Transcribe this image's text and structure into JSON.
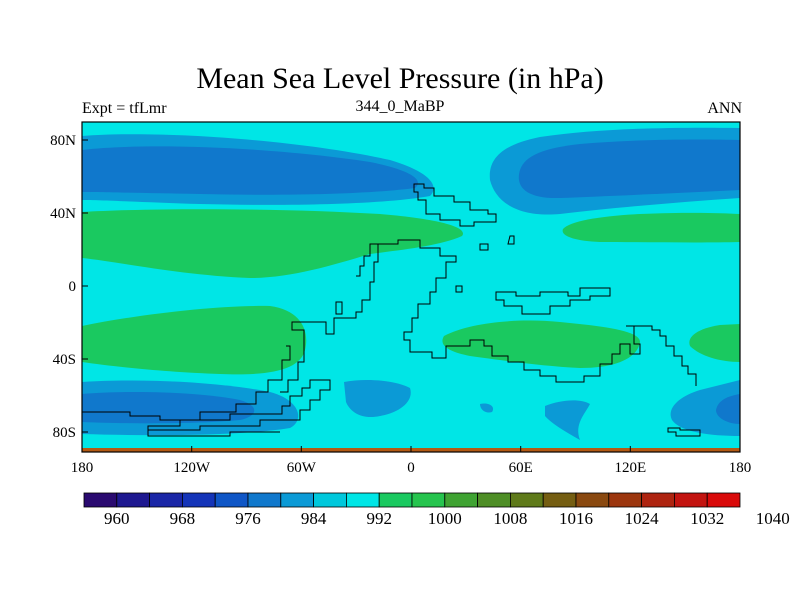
{
  "title": "Mean Sea Level Pressure (in hPa)",
  "subtitle_left": "Expt = tfLmr",
  "subtitle_center": "344_0_MaBP",
  "subtitle_right": "ANN",
  "colors": {
    "background": "#00E6E6",
    "land_outline": "#000000",
    "border": "#000000",
    "bottom_strip": "#B35A14"
  },
  "map": {
    "x_ticks": [
      "180",
      "120W",
      "60W",
      "0",
      "60E",
      "120E",
      "180"
    ],
    "y_ticks": [
      "80N",
      "40N",
      "0",
      "40S",
      "80S"
    ]
  },
  "colorbar": {
    "colors": [
      "#2A0A70",
      "#1E1890",
      "#1A26A6",
      "#1434B8",
      "#0F56C6",
      "#1078CC",
      "#0B9AD6",
      "#00C8DC",
      "#00E6E6",
      "#1AC960",
      "#26C44E",
      "#3FA332",
      "#4E8E26",
      "#5F7A1A",
      "#755E12",
      "#8A4910",
      "#9C360E",
      "#AE2410",
      "#C31410",
      "#D90A0A"
    ],
    "labels": [
      "960",
      "968",
      "976",
      "984",
      "992",
      "1000",
      "1008",
      "1016",
      "1024",
      "1032",
      "1040"
    ]
  }
}
